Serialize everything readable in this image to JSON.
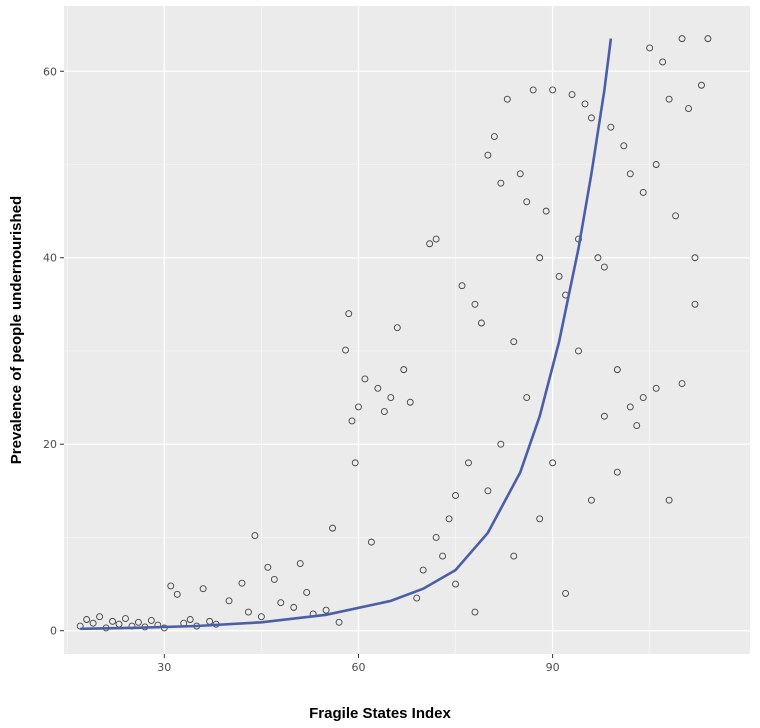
{
  "chart_data": {
    "type": "scatter",
    "xlabel": "Fragile States Index",
    "ylabel": "Prevalence of people undernourished",
    "xlim": [
      14.5,
      120.5
    ],
    "ylim": [
      -2.5,
      67
    ],
    "x_ticks": [
      30,
      60,
      90
    ],
    "y_ticks": [
      0,
      20,
      40,
      60
    ],
    "x_tick_labels": [
      "30",
      "60",
      "90"
    ],
    "y_tick_labels": [
      "0",
      "20",
      "40",
      "60"
    ],
    "grid": true,
    "legend": "none",
    "colors": {
      "panel": "#ebebeb",
      "grid": "#ffffff",
      "points": "#222222",
      "fit_line": "#4a5fa8"
    },
    "series": [
      {
        "type": "scatter",
        "points": [
          [
            17,
            0.5
          ],
          [
            18,
            1.2
          ],
          [
            19,
            0.8
          ],
          [
            20,
            1.5
          ],
          [
            21,
            0.3
          ],
          [
            22,
            1.0
          ],
          [
            23,
            0.7
          ],
          [
            24,
            1.3
          ],
          [
            25,
            0.5
          ],
          [
            26,
            0.9
          ],
          [
            27,
            0.4
          ],
          [
            28,
            1.1
          ],
          [
            29,
            0.6
          ],
          [
            30,
            0.3
          ],
          [
            31,
            4.8
          ],
          [
            32,
            3.9
          ],
          [
            33,
            0.8
          ],
          [
            34,
            1.2
          ],
          [
            35,
            0.5
          ],
          [
            36,
            4.5
          ],
          [
            37,
            1.0
          ],
          [
            38,
            0.7
          ],
          [
            40,
            3.2
          ],
          [
            42,
            5.1
          ],
          [
            43,
            2.0
          ],
          [
            44,
            10.2
          ],
          [
            45,
            1.5
          ],
          [
            46,
            6.8
          ],
          [
            47,
            5.5
          ],
          [
            48,
            3.0
          ],
          [
            50,
            2.5
          ],
          [
            51,
            7.2
          ],
          [
            52,
            4.1
          ],
          [
            53,
            1.8
          ],
          [
            55,
            2.2
          ],
          [
            56,
            11.0
          ],
          [
            57,
            0.9
          ],
          [
            58,
            30.1
          ],
          [
            58.5,
            34.0
          ],
          [
            59,
            22.5
          ],
          [
            59.5,
            18.0
          ],
          [
            60,
            24.0
          ],
          [
            61,
            27.0
          ],
          [
            62,
            9.5
          ],
          [
            63,
            26.0
          ],
          [
            64,
            23.5
          ],
          [
            65,
            25.0
          ],
          [
            66,
            32.5
          ],
          [
            67,
            28.0
          ],
          [
            68,
            24.5
          ],
          [
            69,
            3.5
          ],
          [
            70,
            6.5
          ],
          [
            71,
            41.5
          ],
          [
            72,
            42.0
          ],
          [
            73,
            8.0
          ],
          [
            74,
            12.0
          ],
          [
            75,
            14.5
          ],
          [
            76,
            37.0
          ],
          [
            77,
            18.0
          ],
          [
            78,
            35.0
          ],
          [
            79,
            33.0
          ],
          [
            80,
            51.0
          ],
          [
            81,
            53.0
          ],
          [
            82,
            48.0
          ],
          [
            83,
            57.0
          ],
          [
            84,
            31.0
          ],
          [
            85,
            49.0
          ],
          [
            86,
            46.0
          ],
          [
            87,
            58.0
          ],
          [
            88,
            40.0
          ],
          [
            89,
            45.0
          ],
          [
            90,
            58.0
          ],
          [
            91,
            38.0
          ],
          [
            92,
            36.0
          ],
          [
            93,
            57.5
          ],
          [
            94,
            42.0
          ],
          [
            95,
            56.5
          ],
          [
            96,
            55.0
          ],
          [
            97,
            40.0
          ],
          [
            98,
            39.0
          ],
          [
            99,
            54.0
          ],
          [
            100,
            28.0
          ],
          [
            101,
            52.0
          ],
          [
            102,
            49.0
          ],
          [
            103,
            22.0
          ],
          [
            104,
            47.0
          ],
          [
            105,
            62.5
          ],
          [
            106,
            50.0
          ],
          [
            107,
            61.0
          ],
          [
            108,
            57.0
          ],
          [
            109,
            44.5
          ],
          [
            110,
            63.5
          ],
          [
            111,
            56.0
          ],
          [
            112,
            40.0
          ],
          [
            113,
            58.5
          ],
          [
            114,
            63.5
          ],
          [
            72,
            10.0
          ],
          [
            75,
            5.0
          ],
          [
            78,
            2.0
          ],
          [
            80,
            15.0
          ],
          [
            82,
            20.0
          ],
          [
            84,
            8.0
          ],
          [
            86,
            25.0
          ],
          [
            88,
            12.0
          ],
          [
            90,
            18.0
          ],
          [
            92,
            4.0
          ],
          [
            94,
            30.0
          ],
          [
            96,
            14.0
          ],
          [
            98,
            23.0
          ],
          [
            100,
            17.0
          ],
          [
            102,
            24.0
          ],
          [
            104,
            25.0
          ],
          [
            106,
            26.0
          ],
          [
            108,
            14.0
          ],
          [
            110,
            26.5
          ],
          [
            112,
            35.0
          ]
        ]
      },
      {
        "type": "line",
        "name": "",
        "x": [
          17,
          25,
          35,
          45,
          55,
          65,
          70,
          75,
          80,
          85,
          88,
          91,
          94,
          96,
          98,
          99
        ],
        "y": [
          0.2,
          0.3,
          0.5,
          0.9,
          1.7,
          3.2,
          4.5,
          6.5,
          10.5,
          17.0,
          23.0,
          31.0,
          41.0,
          49.0,
          58.0,
          63.5
        ]
      }
    ]
  }
}
